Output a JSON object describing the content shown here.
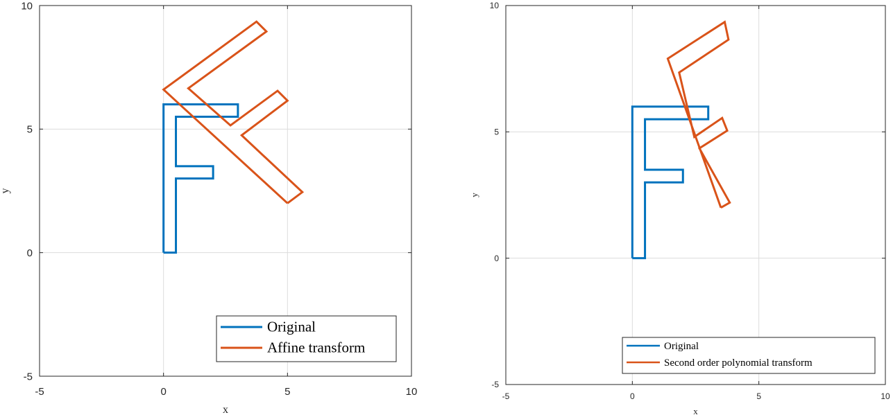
{
  "chart_data": [
    {
      "type": "line",
      "xlabel": "x",
      "ylabel": "y",
      "xlim": [
        -5,
        10
      ],
      "ylim": [
        -5,
        10
      ],
      "xticks": [
        -5,
        0,
        5,
        10
      ],
      "yticks": [
        -5,
        0,
        5,
        10
      ],
      "grid": true,
      "legend_position": "bottom-right",
      "series": [
        {
          "name": "Original",
          "color": "#0072BD",
          "points": [
            [
              0,
              0
            ],
            [
              0,
              6
            ],
            [
              3,
              6
            ],
            [
              3,
              5.5
            ],
            [
              0.5,
              5.5
            ],
            [
              0.5,
              3.5
            ],
            [
              2,
              3.5
            ],
            [
              2,
              3
            ],
            [
              0.5,
              3
            ],
            [
              0.5,
              0
            ],
            [
              0,
              0
            ]
          ]
        },
        {
          "name": "Affine transform",
          "color": "#D95319",
          "points": [
            [
              5,
              2
            ],
            [
              0,
              6.6
            ],
            [
              3.75,
              9.35
            ],
            [
              4.15,
              8.95
            ],
            [
              1,
              6.65
            ],
            [
              2.7,
              5.15
            ],
            [
              4.6,
              6.55
            ],
            [
              5,
              6.15
            ],
            [
              3.15,
              4.75
            ],
            [
              5.6,
              2.45
            ],
            [
              5,
              2
            ]
          ]
        }
      ]
    },
    {
      "type": "line",
      "xlabel": "x",
      "ylabel": "y",
      "xlim": [
        -5,
        10
      ],
      "ylim": [
        -5,
        10
      ],
      "xticks": [
        -5,
        0,
        5,
        10
      ],
      "yticks": [
        -5,
        0,
        5,
        10
      ],
      "grid": true,
      "legend_position": "bottom-right",
      "series": [
        {
          "name": "Original",
          "color": "#0072BD",
          "points": [
            [
              0,
              0
            ],
            [
              0,
              6
            ],
            [
              3,
              6
            ],
            [
              3,
              5.5
            ],
            [
              0.5,
              5.5
            ],
            [
              0.5,
              3.5
            ],
            [
              2,
              3.5
            ],
            [
              2,
              3
            ],
            [
              0.5,
              3
            ],
            [
              0.5,
              0
            ],
            [
              0,
              0
            ]
          ]
        },
        {
          "name": "Second order polynomial transform",
          "color": "#D95319",
          "points": [
            [
              3.5,
              2
            ],
            [
              1.4,
              7.9
            ],
            [
              3.65,
              9.35
            ],
            [
              3.8,
              8.65
            ],
            [
              1.85,
              7.35
            ],
            [
              2.45,
              4.8
            ],
            [
              3.55,
              5.55
            ],
            [
              3.75,
              5.05
            ],
            [
              2.65,
              4.35
            ],
            [
              3.85,
              2.2
            ],
            [
              3.5,
              2
            ]
          ]
        }
      ]
    }
  ]
}
